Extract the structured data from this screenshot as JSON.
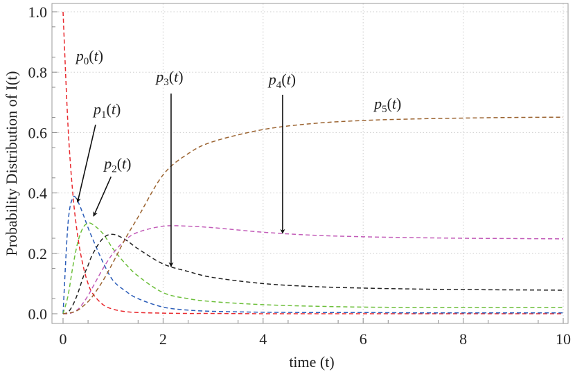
{
  "chart_data": {
    "type": "line",
    "title": "",
    "xlabel": "time (t)",
    "ylabel": "Probability Distribution of  I(t)",
    "xlim": [
      0,
      10
    ],
    "ylim": [
      0,
      1
    ],
    "xticks": [
      "0",
      "2",
      "4",
      "6",
      "8",
      "10"
    ],
    "yticks": [
      "0.0",
      "0.2",
      "0.4",
      "0.6",
      "0.8",
      "1.0"
    ],
    "grid": true,
    "line_style": "dashed",
    "x": [
      0,
      0.1,
      0.2,
      0.3,
      0.4,
      0.5,
      0.6,
      0.8,
      1.0,
      1.25,
      1.5,
      2,
      2.5,
      3,
      4,
      5,
      6,
      7,
      8,
      9,
      10
    ],
    "series": [
      {
        "name": "p0(t)",
        "color": "#e8282d",
        "values": [
          1,
          0.62,
          0.39,
          0.25,
          0.16,
          0.1,
          0.065,
          0.03,
          0.015,
          0.007,
          0.004,
          0.002,
          0.001,
          0.001,
          0,
          0,
          0,
          0,
          0,
          0,
          0
        ]
      },
      {
        "name": "p1(t)",
        "color": "#2a5cb8",
        "values": [
          0,
          0.3,
          0.385,
          0.37,
          0.33,
          0.285,
          0.245,
          0.17,
          0.11,
          0.075,
          0.05,
          0.022,
          0.012,
          0.008,
          0.005,
          0.004,
          0.004,
          0.003,
          0.003,
          0.003,
          0.003
        ]
      },
      {
        "name": "p2(t)",
        "color": "#6cbf3a",
        "values": [
          0,
          0.06,
          0.16,
          0.24,
          0.285,
          0.3,
          0.295,
          0.265,
          0.215,
          0.165,
          0.125,
          0.07,
          0.05,
          0.04,
          0.03,
          0.025,
          0.022,
          0.021,
          0.021,
          0.021,
          0.021
        ]
      },
      {
        "name": "p3(t)",
        "color": "#222222",
        "values": [
          0,
          0.005,
          0.03,
          0.07,
          0.12,
          0.16,
          0.2,
          0.25,
          0.263,
          0.245,
          0.215,
          0.165,
          0.14,
          0.12,
          0.1,
          0.09,
          0.085,
          0.082,
          0.08,
          0.079,
          0.078
        ]
      },
      {
        "name": "p4(t)",
        "color": "#c25bb8",
        "values": [
          0,
          0,
          0.005,
          0.015,
          0.035,
          0.06,
          0.09,
          0.15,
          0.2,
          0.245,
          0.27,
          0.29,
          0.29,
          0.285,
          0.27,
          0.26,
          0.255,
          0.252,
          0.25,
          0.249,
          0.248
        ]
      },
      {
        "name": "p5(t)",
        "color": "#9b6330",
        "values": [
          0,
          0.002,
          0.005,
          0.012,
          0.025,
          0.04,
          0.06,
          0.11,
          0.17,
          0.25,
          0.32,
          0.46,
          0.53,
          0.57,
          0.61,
          0.63,
          0.64,
          0.645,
          0.648,
          0.65,
          0.651
        ]
      }
    ],
    "annotations": [
      {
        "label": "p0(t)",
        "at": [
          0.26,
          0.837
        ]
      },
      {
        "label": "p1(t)",
        "at": [
          0.61,
          0.66
        ],
        "arrow_from": [
          0.65,
          0.626
        ],
        "arrow_to": [
          0.29,
          0.369
        ]
      },
      {
        "label": "p2(t)",
        "at": [
          0.82,
          0.48
        ],
        "arrow_from": [
          0.96,
          0.454
        ],
        "arrow_to": [
          0.61,
          0.323
        ]
      },
      {
        "label": "p3(t)",
        "at": [
          1.86,
          0.768
        ],
        "arrow_from": [
          2.16,
          0.729
        ],
        "arrow_to": [
          2.16,
          0.156
        ]
      },
      {
        "label": "p4(t)",
        "at": [
          4.11,
          0.759
        ],
        "arrow_from": [
          4.39,
          0.725
        ],
        "arrow_to": [
          4.39,
          0.266
        ]
      },
      {
        "label": "p5(t)",
        "at": [
          6.22,
          0.679
        ]
      }
    ]
  }
}
